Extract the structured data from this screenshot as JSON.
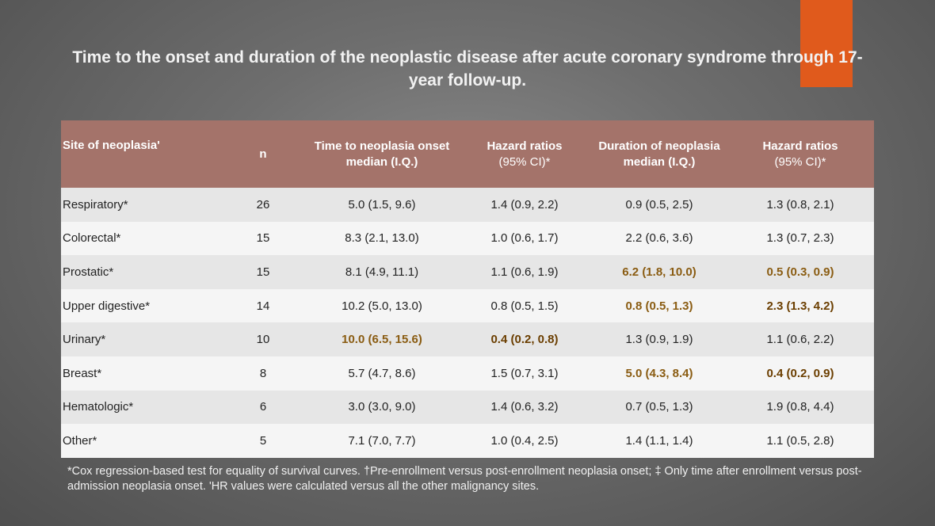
{
  "title": "Time to the onset and duration of the neoplastic disease after acute coronary syndrome through 17-year follow-up.",
  "table": {
    "headers": {
      "site": "Site of neoplasia'",
      "n": "n",
      "time_onset": "Time to neoplasia onset median (I.Q.)",
      "hr1_label": "Hazard ratios",
      "hr1_ci": "(95% CI)*",
      "duration": "Duration of neoplasia median (I.Q.)",
      "hr2_label": "Hazard ratios",
      "hr2_ci": "(95% CI)*"
    },
    "rows": [
      {
        "site": "Respiratory*",
        "n": "26",
        "time": "5.0 (1.5, 9.6)",
        "hr1": "1.4 (0.9, 2.2)",
        "duration": "0.9 (0.5, 2.5)",
        "hr2": "1.3 (0.8, 2.1)"
      },
      {
        "site": "Colorectal*",
        "n": "15",
        "time": "8.3 (2.1, 13.0)",
        "hr1": "1.0 (0.6, 1.7)",
        "duration": "2.2 (0.6, 3.6)",
        "hr2": "1.3 (0.7, 2.3)"
      },
      {
        "site": "Prostatic*",
        "n": "15",
        "time": "8.1 (4.9, 11.1)",
        "hr1": "1.1 (0.6, 1.9)",
        "duration": "6.2 (1.8, 10.0)",
        "hr2": "0.5 (0.3, 0.9)"
      },
      {
        "site": "Upper digestive*",
        "n": "14",
        "time": "10.2 (5.0, 13.0)",
        "hr1": "0.8 (0.5, 1.5)",
        "duration": "0.8 (0.5, 1.3)",
        "hr2": "2.3 (1.3, 4.2)"
      },
      {
        "site": "Urinary*",
        "n": "10",
        "time": "10.0 (6.5, 15.6)",
        "hr1": "0.4 (0.2, 0.8)",
        "duration": "1.3 (0.9, 1.9)",
        "hr2": "1.1 (0.6, 2.2)"
      },
      {
        "site": "Breast*",
        "n": "8",
        "time": "5.7 (4.7, 8.6)",
        "hr1": "1.5 (0.7, 3.1)",
        "duration": "5.0 (4.3, 8.4)",
        "hr2": "0.4 (0.2, 0.9)"
      },
      {
        "site": "Hematologic*",
        "n": "6",
        "time": "3.0 (3.0, 9.0)",
        "hr1": "1.4 (0.6, 3.2)",
        "duration": "0.7 (0.5, 1.3)",
        "hr2": "1.9 (0.8, 4.4)"
      },
      {
        "site": "Other*",
        "n": "5",
        "time": "7.1 (7.0, 7.7)",
        "hr1": "1.0 (0.4, 2.5)",
        "duration": "1.4 (1.1, 1.4)",
        "hr2": "1.1 (0.5, 2.8)"
      }
    ]
  },
  "footnote": "*Cox regression-based test for equality of survival curves. †Pre-enrollment versus post-enrollment neoplasia onset; ‡ Only time after enrollment versus post-admission neoplasia onset. 'HR values were calculated versus all the other malignancy sites.",
  "colors": {
    "accent": "#e05a1c",
    "header_bg": "#a4736a",
    "highlight_text": "#8a5c12"
  }
}
